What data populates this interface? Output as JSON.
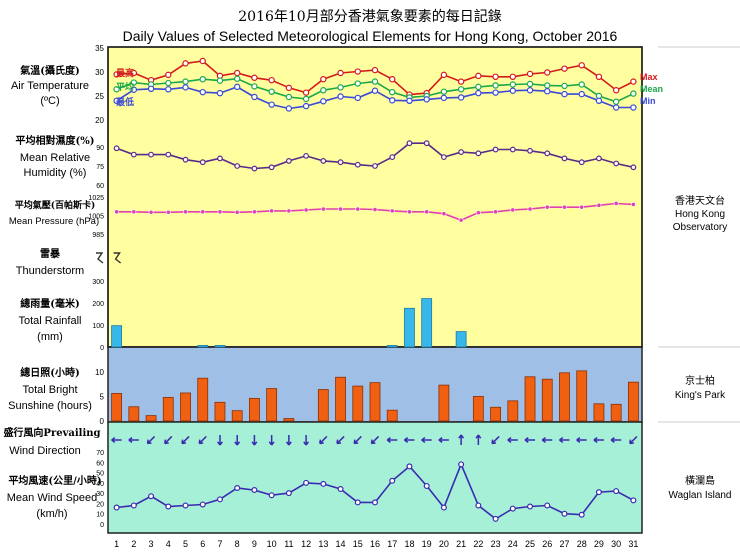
{
  "title_zh": "2016年10月部分香港氣象要素的每日記錄",
  "title_en": "Daily Values of Selected Meteorological Elements for Hong Kong, October 2016",
  "stations": {
    "hko": {
      "zh": "香港天文台",
      "en1": "Hong Kong",
      "en2": "Observatory"
    },
    "kp": {
      "zh": "京士柏",
      "en": "King's Park"
    },
    "wi": {
      "zh": "橫瀾島",
      "en": "Waglan Island"
    }
  },
  "days": [
    1,
    2,
    3,
    4,
    5,
    6,
    7,
    8,
    9,
    10,
    11,
    12,
    13,
    14,
    15,
    16,
    17,
    18,
    19,
    20,
    21,
    22,
    23,
    24,
    25,
    26,
    27,
    28,
    29,
    30,
    31
  ],
  "colors": {
    "panel_yellow": "#ffff9f",
    "panel_blue": "#9fbfe6",
    "panel_green": "#a6f0d8",
    "max": "#d41a1a",
    "mean": "#1aa84a",
    "min": "#3a4ad4",
    "humidity": "#5a2a8a",
    "pressure": "#e040b0",
    "rain": "#38b8e8",
    "sunshine": "#f06010",
    "wind": "#3a2ab0"
  },
  "chart_data": [
    {
      "type": "line",
      "id": "temperature",
      "label_zh": "氣溫(攝氏度)",
      "label_en1": "Air Temperature",
      "label_en2": "(ºC)",
      "ylim": [
        20,
        35
      ],
      "ticks": [
        20,
        25,
        30,
        35
      ],
      "series": [
        {
          "name": "Max",
          "name_zh": "最高",
          "values": [
            29.5,
            29.8,
            28.3,
            29.4,
            31.8,
            32.3,
            29.2,
            29.8,
            28.8,
            28.3,
            26.7,
            25.7,
            28.5,
            29.8,
            30.1,
            30.4,
            28.5,
            25.3,
            25.6,
            29.4,
            28.0,
            29.2,
            29.0,
            29.0,
            29.6,
            29.9,
            30.7,
            31.4,
            29.0,
            26.2,
            28.0
          ]
        },
        {
          "name": "Mean",
          "name_zh": "平均",
          "values": [
            26.4,
            27.8,
            27.4,
            27.7,
            28.0,
            28.5,
            28.2,
            28.6,
            27.0,
            25.9,
            24.8,
            24.4,
            26.2,
            26.8,
            27.6,
            28.0,
            25.8,
            24.7,
            25.0,
            25.9,
            26.4,
            26.9,
            27.2,
            27.4,
            27.5,
            27.2,
            27.1,
            27.4,
            25.0,
            23.8,
            25.5
          ]
        },
        {
          "name": "Min",
          "name_zh": "最低",
          "values": [
            24.0,
            26.3,
            26.5,
            26.4,
            26.8,
            25.8,
            25.6,
            26.9,
            24.8,
            23.2,
            22.4,
            22.9,
            23.9,
            24.9,
            24.6,
            26.1,
            24.1,
            24.0,
            24.3,
            24.6,
            24.7,
            25.6,
            25.7,
            26.1,
            26.2,
            26.0,
            25.4,
            25.4,
            24.0,
            22.6,
            22.6
          ]
        }
      ]
    },
    {
      "type": "line",
      "id": "humidity",
      "label_zh": "平均相對濕度(%)",
      "label_en1": "Mean Relative",
      "label_en2": "Humidity  (%)",
      "ylim": [
        60,
        90
      ],
      "ticks": [
        60,
        75,
        90
      ],
      "series": [
        {
          "name": "Mean Relative Humidity",
          "values": [
            89,
            84,
            84,
            84,
            80,
            78,
            81,
            75,
            73,
            74,
            79,
            83,
            79,
            78,
            76,
            75,
            82,
            93,
            93,
            82,
            86,
            85,
            88,
            88,
            87,
            85,
            81,
            78,
            81,
            77,
            74
          ]
        }
      ]
    },
    {
      "type": "line",
      "id": "pressure",
      "label_zh": "平均氣壓(百帕斯卡)",
      "label_en1": "Mean Pressure (hPa)",
      "ylim": [
        985,
        1025
      ],
      "ticks": [
        985,
        1005,
        1025
      ],
      "series": [
        {
          "name": "Mean Pressure",
          "values": [
            1009,
            1009,
            1008.5,
            1008.5,
            1009,
            1009,
            1009,
            1008.5,
            1009,
            1010,
            1010,
            1011,
            1012,
            1012,
            1012,
            1011.5,
            1010,
            1009,
            1009,
            1007,
            1000,
            1008,
            1009,
            1011,
            1012,
            1014,
            1014,
            1014,
            1016,
            1018,
            1017
          ]
        }
      ]
    },
    {
      "type": "scatter",
      "id": "thunderstorm",
      "label_zh": "雷暴",
      "label_en1": "Thunderstorm",
      "legend_symbol": "ㄕ",
      "days": [
        1
      ]
    },
    {
      "type": "bar",
      "id": "rainfall",
      "label_zh": "總雨量(毫米)",
      "label_en1": "Total Rainfall",
      "label_en2": "(mm)",
      "ylim": [
        0,
        300
      ],
      "ticks": [
        0,
        100,
        200,
        300
      ],
      "values": [
        97,
        0,
        0,
        0,
        0,
        7,
        7,
        0,
        0,
        0,
        0,
        0,
        0,
        0,
        0,
        0,
        7,
        176,
        220,
        0,
        70,
        0,
        0,
        0,
        0,
        0,
        0,
        0,
        0,
        0,
        0
      ]
    },
    {
      "type": "bar",
      "id": "sunshine",
      "label_zh": "總日照(小時)",
      "label_en1": "Total Bright",
      "label_en2": "Sunshine  (hours)",
      "ylim": [
        0,
        12
      ],
      "ticks": [
        0,
        5,
        10
      ],
      "values": [
        5.6,
        2.9,
        1.1,
        4.8,
        5.7,
        8.7,
        3.8,
        2.1,
        4.6,
        6.6,
        0.5,
        0,
        6.4,
        8.9,
        7.1,
        7.8,
        2.2,
        0,
        0,
        7.3,
        0,
        5.0,
        2.8,
        4.1,
        9.0,
        8.5,
        9.8,
        10.2,
        3.5,
        3.4,
        7.9
      ]
    },
    {
      "type": "scatter",
      "id": "wind_direction",
      "label_zh": "盛行風向Prevailing",
      "label_en1": "Wind Direction",
      "directions": [
        "E",
        "E",
        "NE",
        "NE",
        "NE",
        "NE",
        "N",
        "N",
        "N",
        "N",
        "N",
        "N",
        "NE",
        "NE",
        "NE",
        "NE",
        "E",
        "E",
        "E",
        "E",
        "S",
        "S",
        "NE",
        "E",
        "E",
        "E",
        "E",
        "E",
        "E",
        "E",
        "NE"
      ]
    },
    {
      "type": "line",
      "id": "wind_speed",
      "label_zh": "平均風速(公里/小時)",
      "label_en1": "Mean Wind Speed",
      "label_en2": "(km/h)",
      "ylim": [
        0,
        70
      ],
      "ticks": [
        0,
        10,
        20,
        30,
        40,
        50,
        60,
        70
      ],
      "series": [
        {
          "name": "Mean Wind Speed",
          "values": [
            16,
            18,
            27,
            17,
            18,
            19,
            24,
            35,
            33,
            28,
            30,
            40,
            39,
            34,
            21,
            21,
            42,
            56,
            37,
            16,
            58,
            18,
            5,
            15,
            17,
            18,
            10,
            9,
            31,
            32,
            23
          ]
        }
      ]
    }
  ]
}
